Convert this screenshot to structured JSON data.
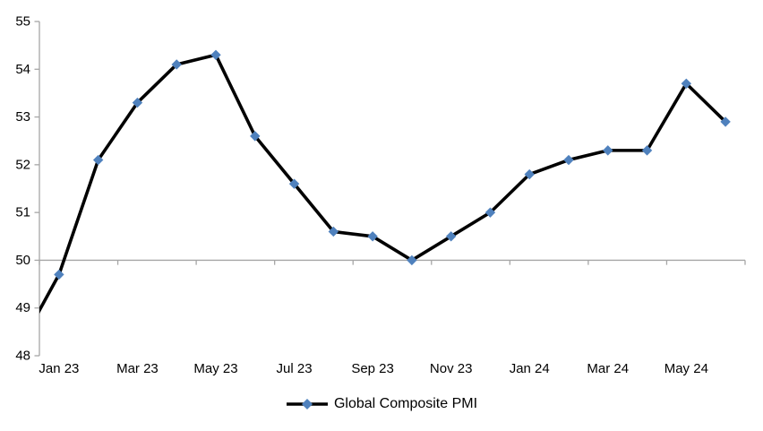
{
  "chart_data": {
    "type": "line",
    "title": "",
    "xlabel": "",
    "ylabel": "",
    "ylim": [
      48,
      55
    ],
    "y_ticks": [
      48,
      49,
      50,
      51,
      52,
      53,
      54,
      55
    ],
    "x_tick_labels": [
      "Jan 23",
      "Mar 23",
      "May 23",
      "Jul 23",
      "Sep 23",
      "Nov 23",
      "Jan 24",
      "Mar 24",
      "May 24"
    ],
    "x_axis_cross_value": 50,
    "grid": "off",
    "legend_position": "bottom-center",
    "categories": [
      "Dec 22",
      "Jan 23",
      "Feb 23",
      "Mar 23",
      "Apr 23",
      "May 23",
      "Jun 23",
      "Jul 23",
      "Aug 23",
      "Sep 23",
      "Oct 23",
      "Nov 23",
      "Dec 23",
      "Jan 24",
      "Feb 24",
      "Mar 24",
      "Apr 24",
      "May 24",
      "Jun 24"
    ],
    "first_point_clipped_at_left_edge": true,
    "series": [
      {
        "name": "Global Composite PMI",
        "marker": "diamond",
        "marker_color": "#4F81BD",
        "line_color": "#000000",
        "values": [
          48.2,
          49.7,
          52.1,
          53.3,
          54.1,
          54.3,
          52.6,
          51.6,
          50.6,
          50.5,
          50.0,
          50.5,
          51.0,
          51.8,
          52.1,
          52.3,
          52.3,
          53.7,
          52.9
        ]
      }
    ]
  },
  "colors": {
    "axis": "#A6A6A6",
    "text": "#000000",
    "background": "#FFFFFF"
  }
}
